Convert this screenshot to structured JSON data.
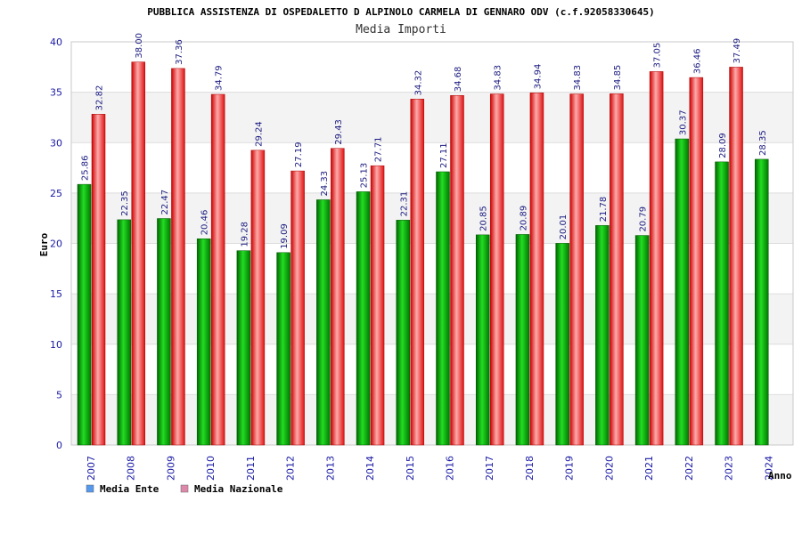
{
  "chart_data": {
    "type": "bar",
    "title": "PUBBLICA ASSISTENZA DI OSPEDALETTO D ALPINOLO CARMELA DI GENNARO ODV (c.f.92058330645)",
    "subtitle": "Media Importi",
    "ylabel": "Euro",
    "xlabel": "Anno",
    "ylim": [
      0,
      40
    ],
    "yticks": [
      "0",
      "5",
      "10",
      "15",
      "20",
      "25",
      "30",
      "35",
      "40"
    ],
    "grid": true,
    "legend_position": "bottom-left",
    "categories": [
      "2007",
      "2008",
      "2009",
      "2010",
      "2011",
      "2012",
      "2013",
      "2014",
      "2015",
      "2016",
      "2017",
      "2018",
      "2019",
      "2020",
      "2021",
      "2022",
      "2023",
      "2024"
    ],
    "series": [
      {
        "name": "Media Ente",
        "color": "#00aa00",
        "legend_color": "#5599ee",
        "values": [
          25.86,
          22.35,
          22.47,
          20.46,
          19.28,
          19.09,
          24.33,
          25.13,
          22.31,
          27.11,
          20.85,
          20.89,
          20.01,
          21.78,
          20.79,
          30.37,
          28.09,
          28.35
        ],
        "labels": [
          "25.86",
          "22.35",
          "22.47",
          "20.46",
          "19.28",
          "19.09",
          "24.33",
          "25.13",
          "22.31",
          "27.11",
          "20.85",
          "20.89",
          "20.01",
          "21.78",
          "20.79",
          "30.37",
          "28.09",
          "28.35"
        ]
      },
      {
        "name": "Media Nazionale",
        "color": "#ee2222",
        "legend_color": "#dd88aa",
        "values": [
          32.82,
          38.0,
          37.36,
          34.79,
          29.24,
          27.19,
          29.43,
          27.71,
          34.32,
          34.68,
          34.83,
          34.94,
          34.83,
          34.85,
          37.05,
          36.46,
          37.49,
          null
        ],
        "labels": [
          "32.82",
          "38.00",
          "37.36",
          "34.79",
          "29.24",
          "27.19",
          "29.43",
          "27.71",
          "34.32",
          "34.68",
          "34.83",
          "34.94",
          "34.83",
          "34.85",
          "37.05",
          "36.46",
          "37.49",
          null
        ]
      }
    ]
  }
}
